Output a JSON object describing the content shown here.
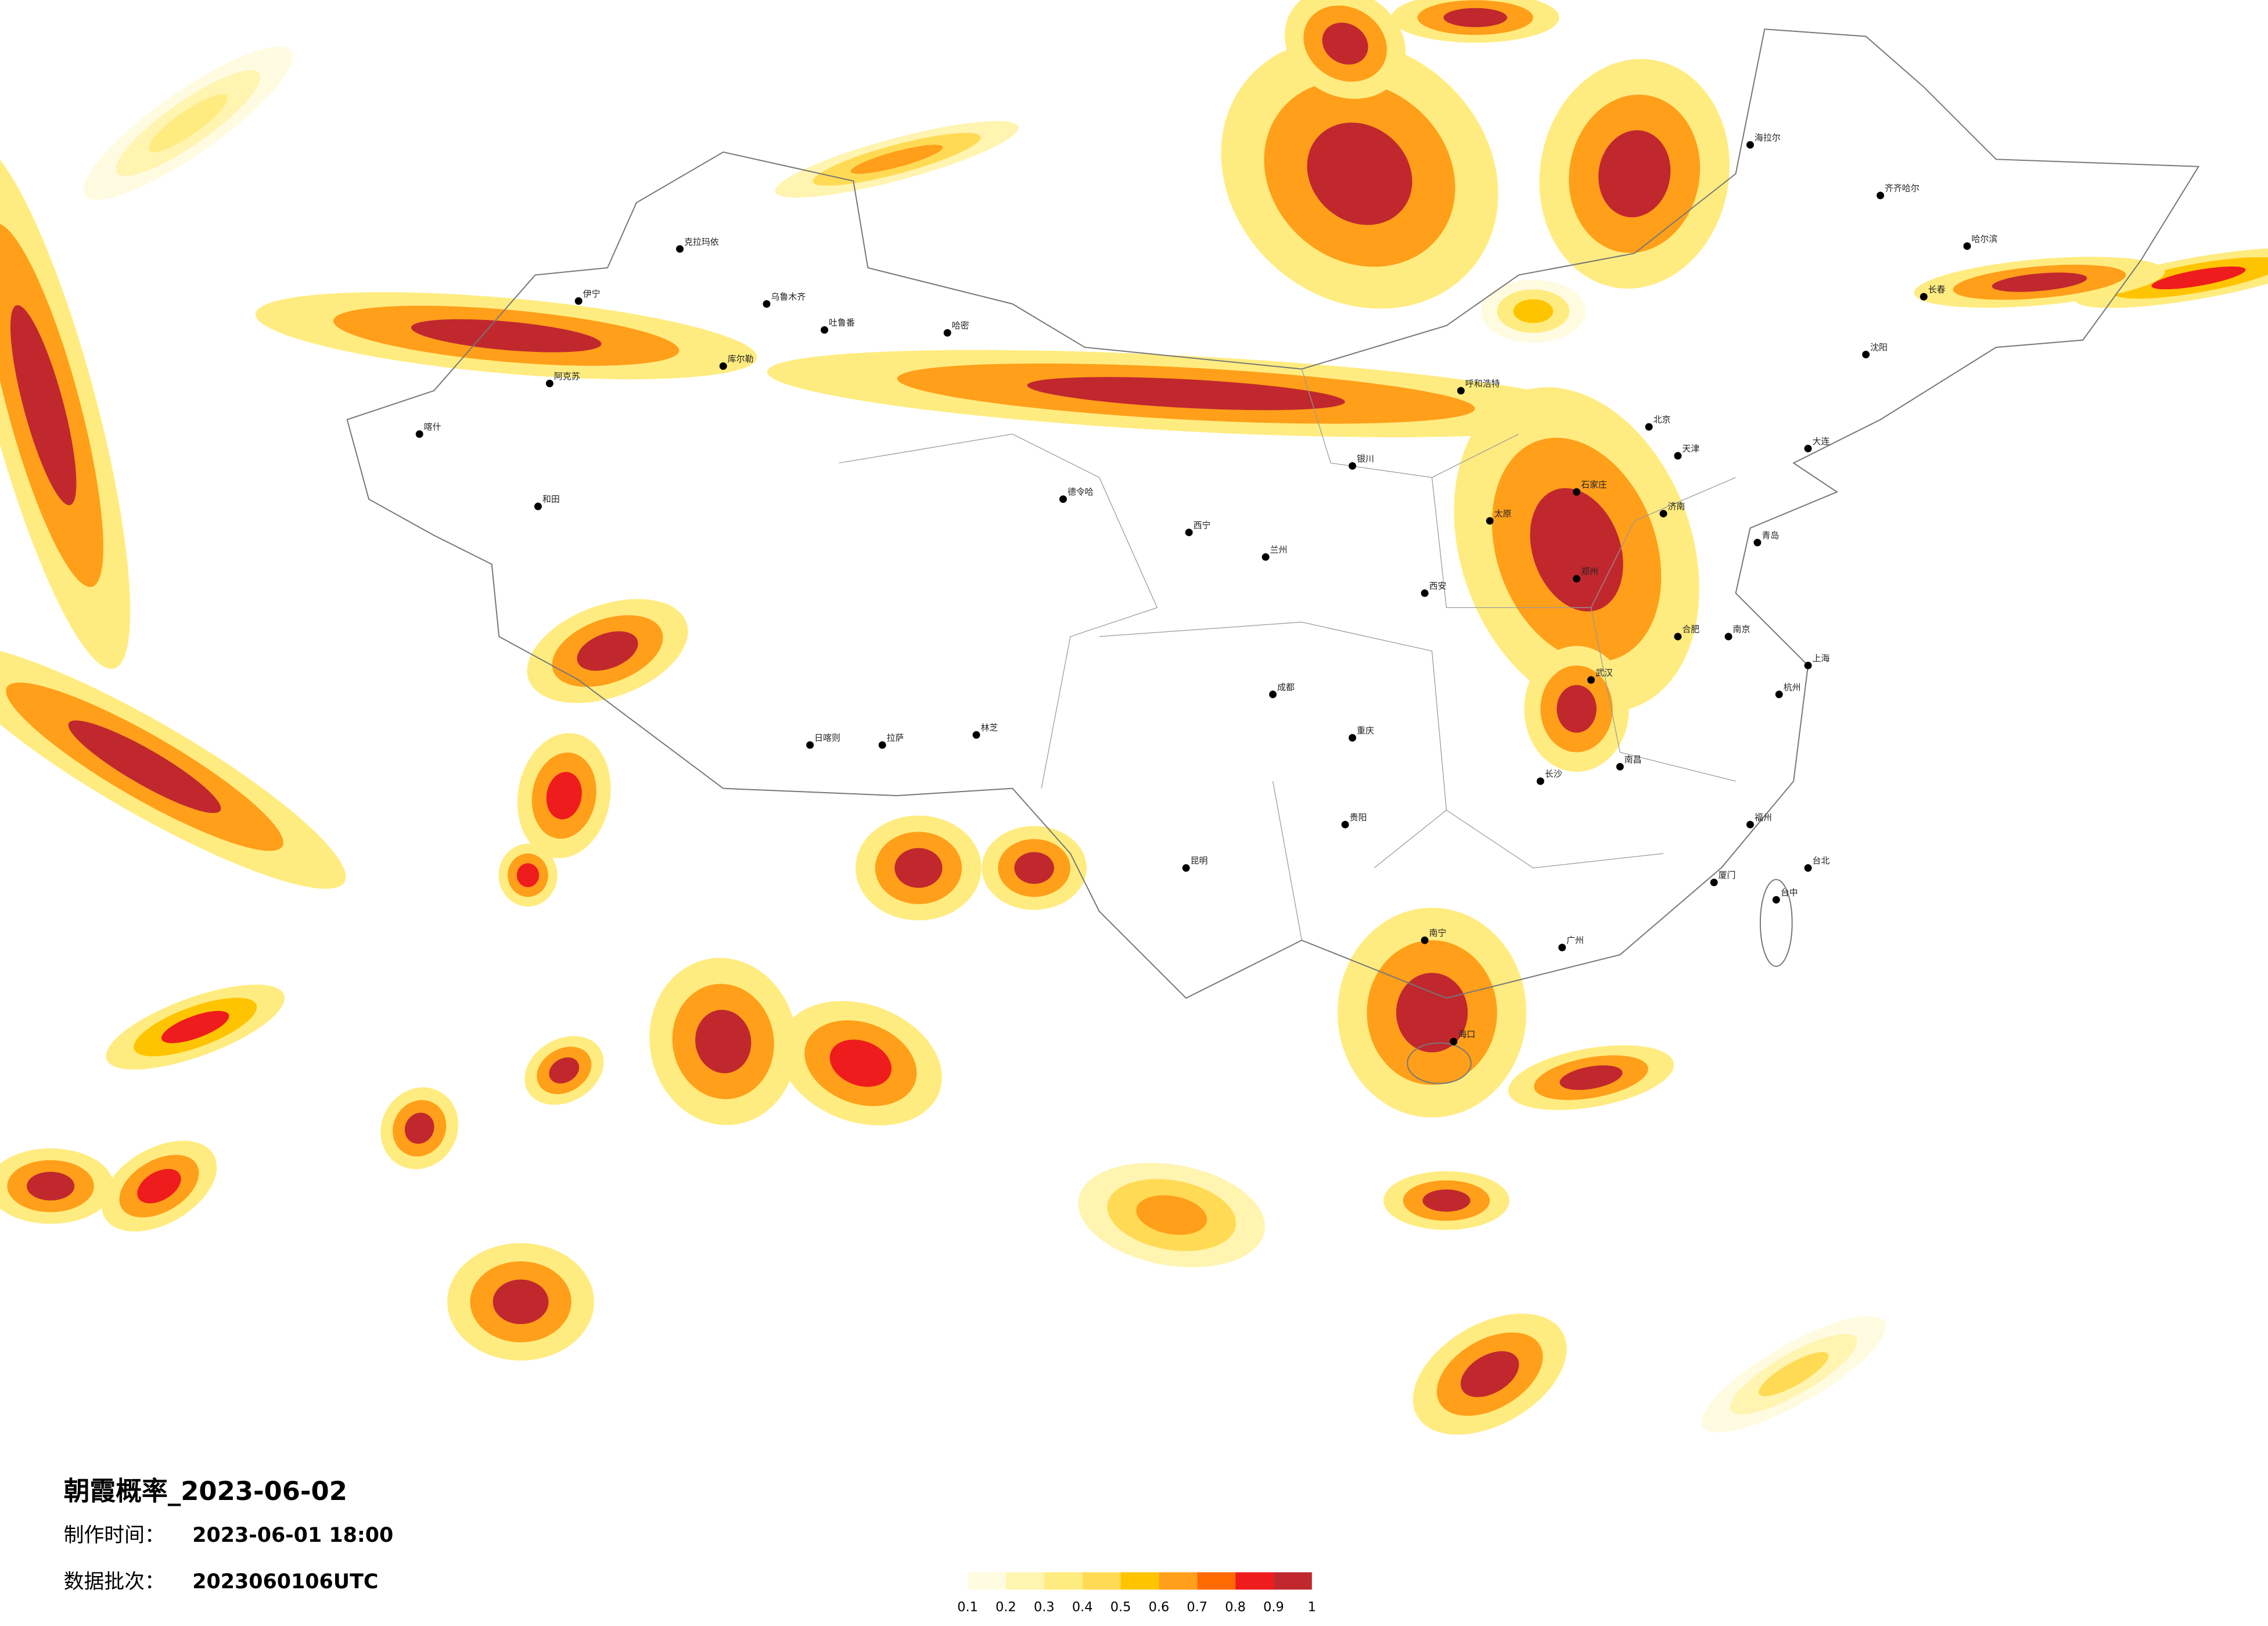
{
  "title": "朝霞概率_2023-06-02",
  "made_label": "制作时间：",
  "made_time": "2023-06-01 18:00",
  "batch_label": "数据批次：",
  "batch": "2023060106UTC",
  "legend": {
    "ticks": [
      0.1,
      0.2,
      0.3,
      0.4,
      0.5,
      0.6,
      0.7,
      0.8,
      0.9,
      1
    ],
    "colors": [
      "#fffbe0",
      "#fff4b0",
      "#ffec80",
      "#ffdb55",
      "#ffc400",
      "#ff9f1a",
      "#ff6a00",
      "#ee1c1c",
      "#c0282e"
    ]
  },
  "areas": [
    [
      0.35,
      0.65,
      0.95
    ],
    [
      0.35,
      0.65,
      0.95
    ],
    [
      0.35,
      0.65,
      0.95
    ],
    [
      0.35,
      0.65,
      0.95
    ],
    [
      0.35,
      0.65,
      0.95
    ],
    [
      0.35,
      0.65,
      0.95
    ],
    [
      0.35,
      0.65,
      0.95
    ],
    [
      0.35,
      0.65,
      0.95
    ],
    [
      0.35,
      0.65,
      0.95
    ],
    [
      0.35,
      0.65,
      0.85
    ],
    [
      0.35,
      0.65,
      0.85
    ],
    [
      0.35,
      0.65,
      0.95
    ],
    [
      0.35,
      0.65,
      0.95
    ],
    [
      0.35,
      0.65,
      0.95
    ],
    [
      0.35,
      0.65,
      0.95
    ],
    [
      0.35,
      0.65,
      0.85
    ],
    [
      0.35,
      0.55,
      0.85
    ],
    [
      0.35,
      0.65,
      0.95
    ],
    [
      0.35,
      0.65,
      0.95
    ],
    [
      0.35,
      0.65,
      0.95
    ],
    [
      0.35,
      0.65,
      0.85
    ],
    [
      0.35,
      0.65,
      0.95
    ],
    [
      0.25,
      0.45,
      0.65
    ],
    [
      0.35,
      0.65,
      0.95
    ],
    [
      0.35,
      0.65,
      0.95
    ],
    [
      0.35,
      0.55,
      0.85
    ],
    [
      0.35,
      0.65,
      0.95
    ],
    [
      0.35,
      0.65,
      0.95
    ],
    [
      0.35,
      0.65,
      0.95
    ],
    [
      0.35,
      0.65,
      0.95
    ],
    [
      0.15,
      0.25,
      0.45
    ],
    [
      0.15,
      0.25,
      0.35
    ],
    [
      0.25,
      0.45,
      0.65
    ],
    [
      0.15,
      0.35,
      0.55
    ]
  ],
  "cities": [
    "克拉玛依",
    "乌鲁木齐",
    "吐鲁番",
    "哈密",
    "库尔勒",
    "阿克苏",
    "喀什",
    "和田",
    "伊宁",
    "德令哈",
    "日喀则",
    "拉萨",
    "林芝",
    "西宁",
    "兰州",
    "银川",
    "呼和浩特",
    "北京",
    "天津",
    "石家庄",
    "太原",
    "济南",
    "青岛",
    "郑州",
    "西安",
    "成都",
    "重庆",
    "武汉",
    "长沙",
    "南昌",
    "合肥",
    "南京",
    "上海",
    "杭州",
    "福州",
    "厦门",
    "广州",
    "南宁",
    "海口",
    "昆明",
    "贵阳",
    "台北",
    "台中",
    "哈尔滨",
    "长春",
    "沈阳",
    "大连",
    "海拉尔",
    "齐齐哈尔"
  ]
}
